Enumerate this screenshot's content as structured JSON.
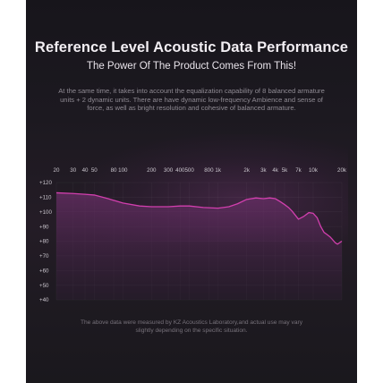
{
  "header": {
    "title": "Reference Level Acoustic Data Performance",
    "subtitle": "The Power Of The Product Comes From This!",
    "description": "At the same time, it takes into account the equalization capability of 8 balanced armature units + 2 dynamic units. There are have dynamic low-frequency Ambience and sense of force, as well as bright resolution and cohesive of balanced armature."
  },
  "footer": {
    "note": "The above data were measured by KZ Acoustics Laboratory,and actual use may vary slightly depending on the specific situation."
  },
  "colors": {
    "curve": "#d23fae",
    "fill": "#5a2a5a",
    "background": "#1c1920"
  },
  "chart_data": {
    "type": "area",
    "title": "",
    "xlabel": "",
    "ylabel": "",
    "x_scale": "log",
    "xlim": [
      20,
      20000
    ],
    "ylim": [
      40,
      120
    ],
    "x_tick_labels": [
      "20",
      "30",
      "40",
      "50",
      "80",
      "100",
      "200",
      "300",
      "400",
      "500",
      "800",
      "1k",
      "2k",
      "3k",
      "4k",
      "5k",
      "7k",
      "10k",
      "20k"
    ],
    "x_tick_values": [
      20,
      30,
      40,
      50,
      80,
      100,
      200,
      300,
      400,
      500,
      800,
      1000,
      2000,
      3000,
      4000,
      5000,
      7000,
      10000,
      20000
    ],
    "y_tick_labels": [
      "+120",
      "+110",
      "+100",
      "+90",
      "+80",
      "+70",
      "+60",
      "+50",
      "+40"
    ],
    "y_tick_values": [
      120,
      110,
      100,
      90,
      80,
      70,
      60,
      50,
      40
    ],
    "grid": true,
    "series": [
      {
        "x": [
          20,
          30,
          40,
          50,
          70,
          100,
          150,
          200,
          300,
          400,
          500,
          700,
          1000,
          1300,
          1600,
          2000,
          2500,
          3000,
          3500,
          4000,
          4500,
          5000,
          5500,
          6000,
          7000,
          8000,
          9000,
          10000,
          11000,
          12000,
          13000,
          14000,
          15000,
          16000,
          17000,
          18000,
          19000,
          20000
        ],
        "y": [
          113,
          112.5,
          112,
          111.5,
          109,
          106,
          104,
          103.5,
          103.5,
          104,
          104,
          103,
          102.5,
          103.5,
          105.5,
          108.5,
          109.5,
          109,
          109.5,
          109,
          107,
          105,
          103,
          100.5,
          95,
          97,
          99.5,
          99,
          96,
          90,
          86,
          84.5,
          83,
          81,
          79,
          78,
          79,
          80
        ]
      }
    ]
  }
}
